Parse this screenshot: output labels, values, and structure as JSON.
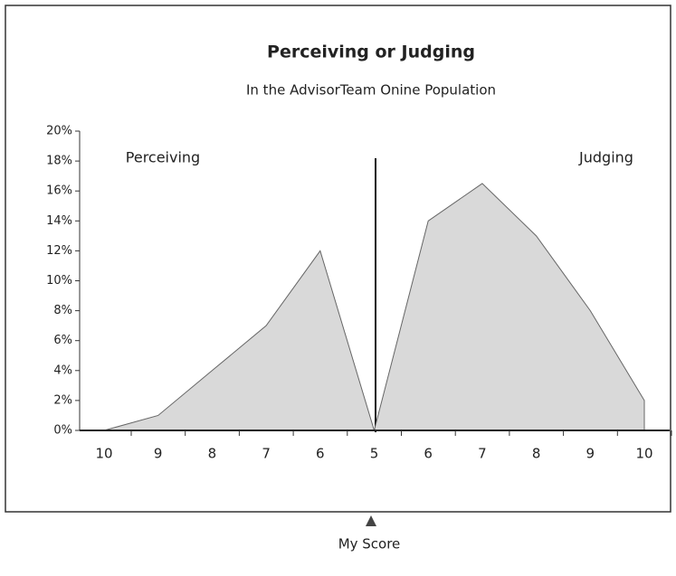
{
  "chart_data": {
    "type": "area",
    "title": "Perceiving or Judging",
    "subtitle": "In the AdvisorTeam Onine Population",
    "annotations": [
      "Perceiving",
      "Judging",
      "My Score"
    ],
    "categories": [
      "10",
      "9",
      "8",
      "7",
      "6",
      "5",
      "6",
      "7",
      "8",
      "9",
      "10"
    ],
    "series": [
      {
        "name": "Perceiving",
        "color": "#d9d9d9",
        "values": [
          0,
          1,
          4,
          7,
          12,
          0,
          null,
          null,
          null,
          null,
          null
        ]
      },
      {
        "name": "Judging",
        "color": "#d9d9d9",
        "values": [
          null,
          null,
          null,
          null,
          null,
          0,
          14,
          16.5,
          13,
          8,
          2
        ]
      }
    ],
    "ylim": [
      0,
      20
    ],
    "yticks": [
      {
        "value": 0,
        "label": "0%"
      },
      {
        "value": 2,
        "label": "2%"
      },
      {
        "value": 4,
        "label": "4%"
      },
      {
        "value": 6,
        "label": "6%"
      },
      {
        "value": 8,
        "label": "8%"
      },
      {
        "value": 10,
        "label": "10%"
      },
      {
        "value": 12,
        "label": "12%"
      },
      {
        "value": 14,
        "label": "14%"
      },
      {
        "value": 16,
        "label": "16%"
      },
      {
        "value": 18,
        "label": "18%"
      },
      {
        "value": 20,
        "label": "20%"
      }
    ]
  }
}
